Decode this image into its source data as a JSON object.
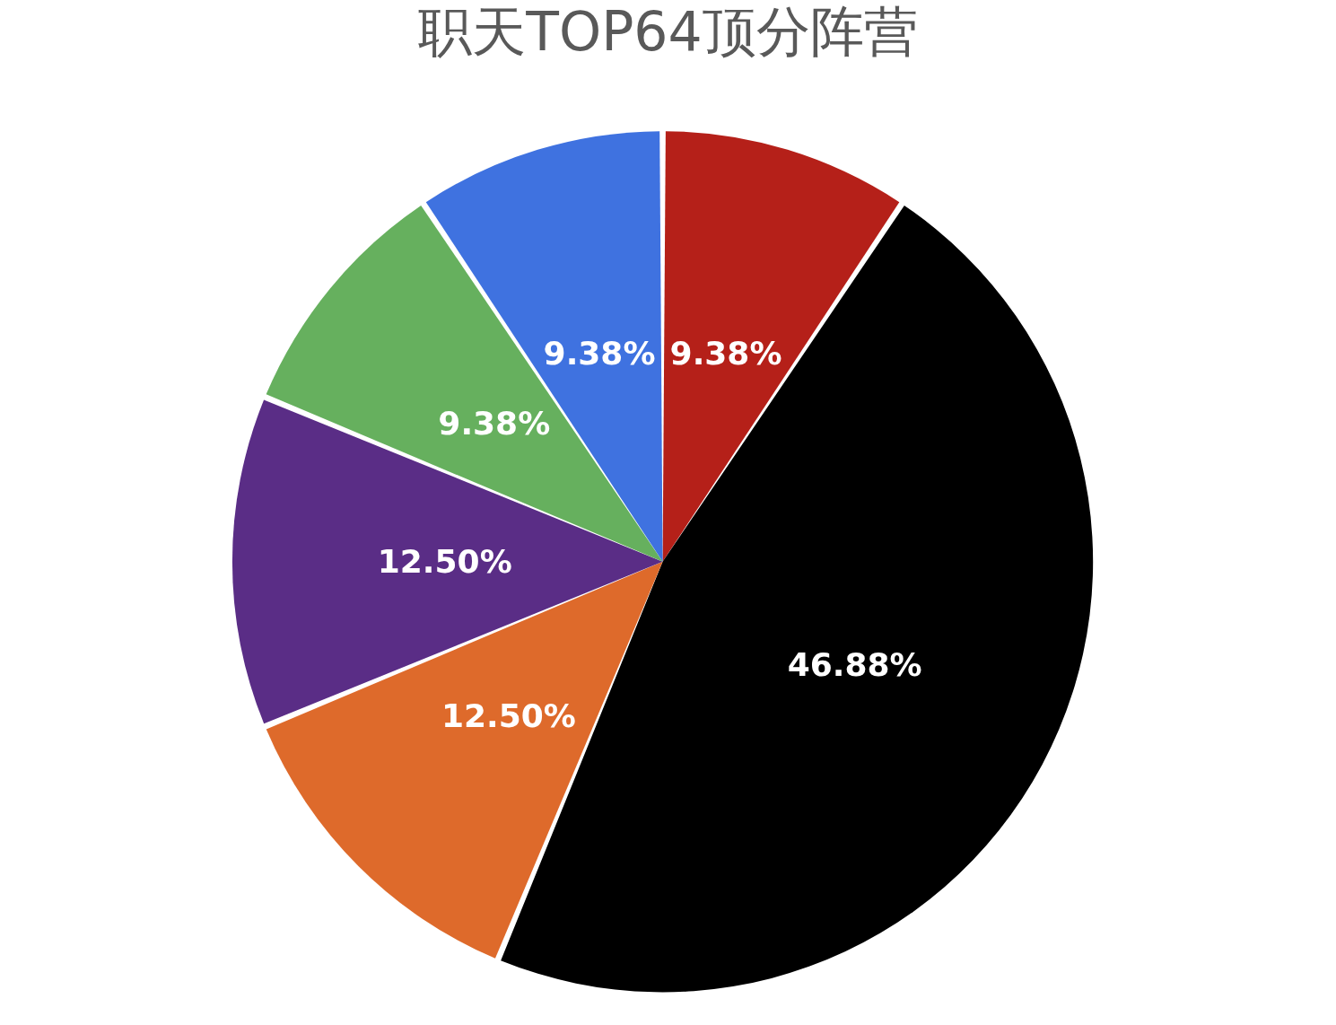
{
  "chart_data": {
    "type": "pie",
    "title": "职天TOP64顶分阵营",
    "categories": [
      null,
      null,
      null,
      null,
      null,
      null
    ],
    "values": [
      9.38,
      46.88,
      12.5,
      12.5,
      9.38,
      9.38
    ],
    "value_labels": [
      "9.38%",
      "46.88%",
      "12.50%",
      "12.50%",
      "9.38%",
      "9.38%"
    ],
    "colors": [
      "#b52019",
      "#000000",
      "#de6a2b",
      "#5a2d86",
      "#66b05e",
      "#3f72e0"
    ]
  }
}
